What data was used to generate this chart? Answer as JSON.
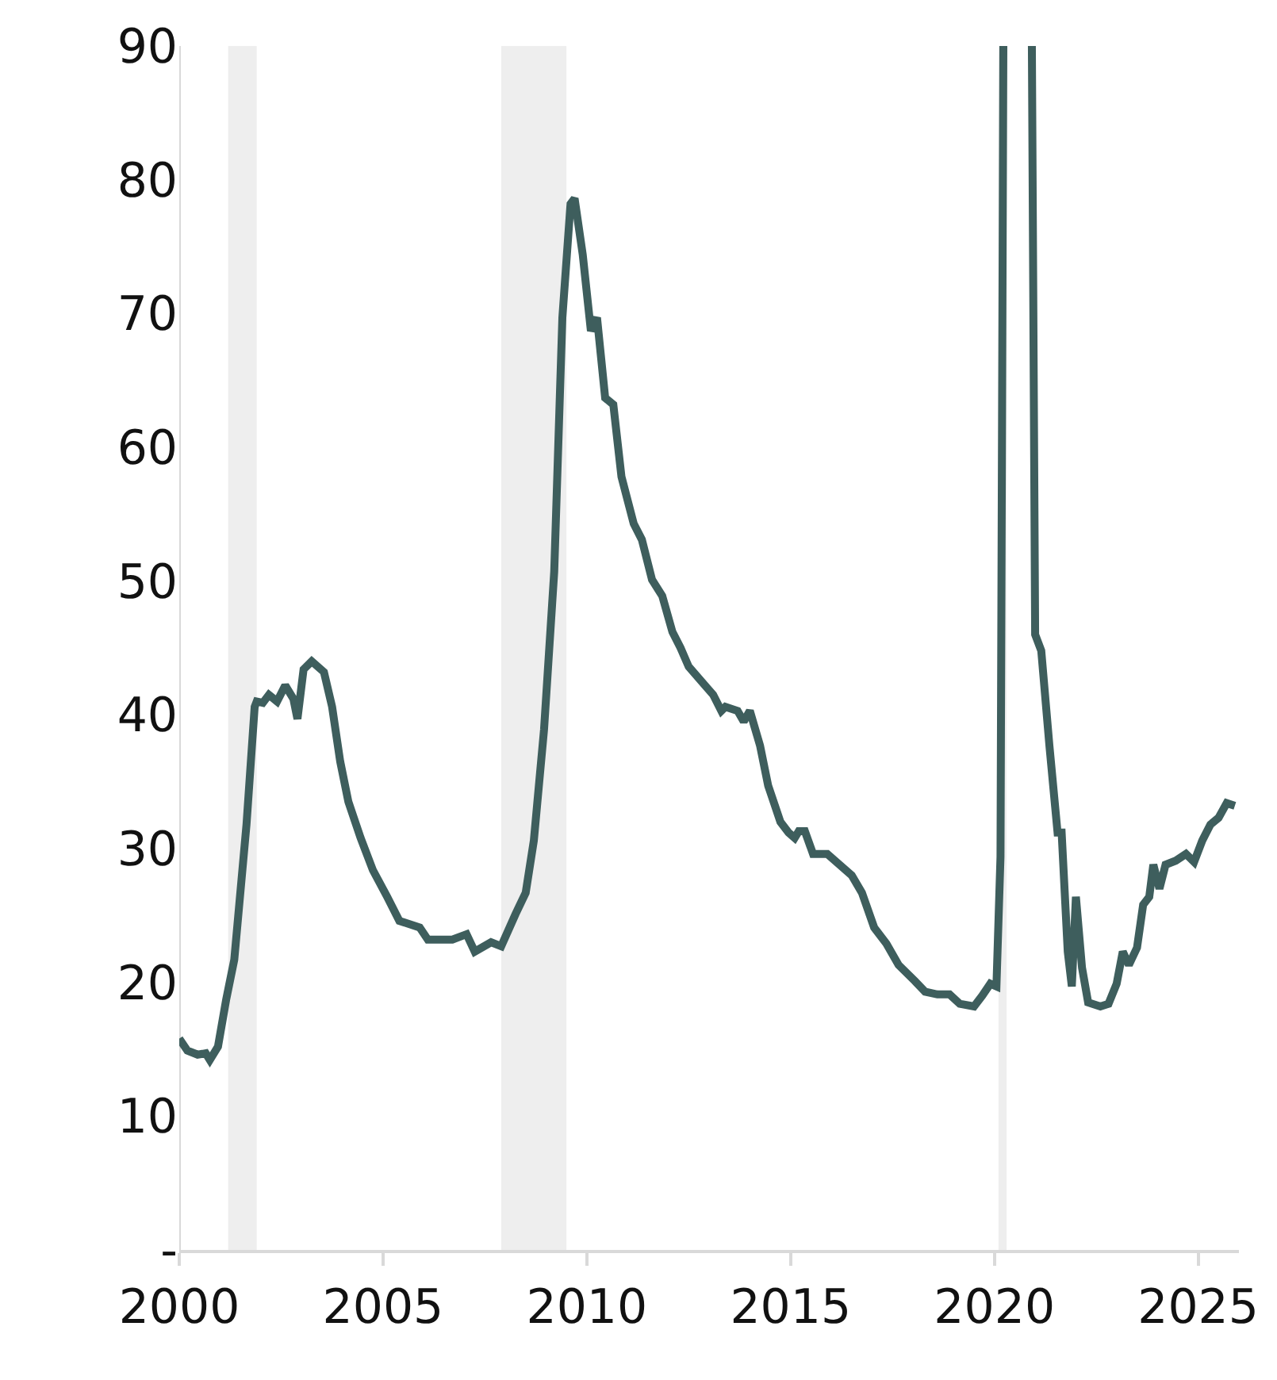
{
  "chart_data": {
    "type": "line",
    "x": [
      2000.0,
      2000.2,
      2000.45,
      2000.65,
      2000.75,
      2000.95,
      2001.15,
      2001.35,
      2001.65,
      2001.85,
      2001.9,
      2002.05,
      2002.2,
      2002.4,
      2002.6,
      2002.8,
      2002.9,
      2003.05,
      2003.25,
      2003.55,
      2003.75,
      2003.95,
      2004.15,
      2004.45,
      2004.75,
      2005.1,
      2005.4,
      2005.9,
      2006.1,
      2006.7,
      2007.05,
      2007.25,
      2007.65,
      2007.9,
      2008.25,
      2008.5,
      2008.7,
      2008.95,
      2009.2,
      2009.4,
      2009.6,
      2009.7,
      2009.9,
      2010.1,
      2010.25,
      2010.45,
      2010.65,
      2010.85,
      2011.15,
      2011.35,
      2011.6,
      2011.85,
      2012.1,
      2012.3,
      2012.5,
      2012.9,
      2013.1,
      2013.3,
      2013.4,
      2013.7,
      2013.85,
      2014.0,
      2014.25,
      2014.45,
      2014.75,
      2014.95,
      2015.1,
      2015.2,
      2015.35,
      2015.55,
      2015.9,
      2016.2,
      2016.5,
      2016.75,
      2017.05,
      2017.35,
      2017.65,
      2018.05,
      2018.3,
      2018.6,
      2018.9,
      2019.15,
      2019.5,
      2019.7,
      2019.9,
      2020.05,
      2020.15,
      2020.22,
      2020.57,
      2020.92,
      2021.0,
      2021.15,
      2021.35,
      2021.55,
      2021.65,
      2021.8,
      2021.9,
      2022.0,
      2022.15,
      2022.3,
      2022.6,
      2022.8,
      2023.0,
      2023.15,
      2023.3,
      2023.5,
      2023.65,
      2023.8,
      2023.9,
      2024.05,
      2024.2,
      2024.45,
      2024.7,
      2024.9,
      2025.1,
      2025.3,
      2025.5,
      2025.7,
      2025.9
    ],
    "series": [
      {
        "color": "#3e5e5d",
        "values": [
          15.8,
          14.9,
          14.6,
          14.7,
          14.2,
          15.2,
          18.7,
          21.7,
          31.8,
          40.6,
          41,
          40.9,
          41.5,
          41,
          42.2,
          41.2,
          39.7,
          43.4,
          44,
          43.2,
          40.6,
          36.5,
          33.5,
          30.8,
          28.4,
          26.4,
          24.6,
          24.1,
          23.2,
          23.2,
          23.6,
          22.3,
          23,
          22.7,
          25.1,
          26.7,
          30.6,
          38.9,
          50.7,
          69.7,
          78.2,
          78.6,
          74.4,
          68.7,
          69.7,
          63.7,
          63.2,
          57.8,
          54.3,
          53.1,
          50.1,
          48.9,
          46.2,
          45,
          43.6,
          42.2,
          41.5,
          40.3,
          40.6,
          40.3,
          39.5,
          40.3,
          37.7,
          34.7,
          32,
          31.2,
          30.8,
          31.3,
          31.3,
          29.6,
          29.6,
          28.8,
          28,
          26.7,
          24.1,
          22.9,
          21.3,
          20.1,
          19.3,
          19.1,
          19.1,
          18.4,
          18.2,
          19,
          19.9,
          19.7,
          29.4,
          90,
          null,
          90,
          46,
          44.8,
          37.7,
          31.2,
          31.2,
          22.3,
          19.7,
          26.4,
          21.1,
          18.5,
          18.2,
          18.4,
          19.9,
          22.3,
          21.3,
          22.6,
          25.8,
          26.4,
          28.8,
          27,
          28.8,
          29.1,
          29.6,
          29,
          30.6,
          31.8,
          32.3,
          33.4,
          33.2
        ]
      }
    ],
    "xlim": [
      2000,
      2026
    ],
    "xticks": [
      2000,
      2005,
      2010,
      2015,
      2020,
      2025
    ],
    "ylim": [
      0,
      90
    ],
    "yticks": [
      {
        "value": 0,
        "label": "-"
      },
      10,
      20,
      30,
      40,
      50,
      60,
      70,
      80,
      90
    ],
    "bands": [
      {
        "axis": "x",
        "from": 2001.2,
        "to": 2001.9,
        "color": "#eeeeee"
      },
      {
        "axis": "x",
        "from": 2007.9,
        "to": 2009.5,
        "color": "#eeeeee"
      },
      {
        "axis": "x",
        "from": 2020.1,
        "to": 2020.3,
        "color": "#eeeeee"
      }
    ],
    "grid": false,
    "marker": "none",
    "line_style": "solid"
  }
}
